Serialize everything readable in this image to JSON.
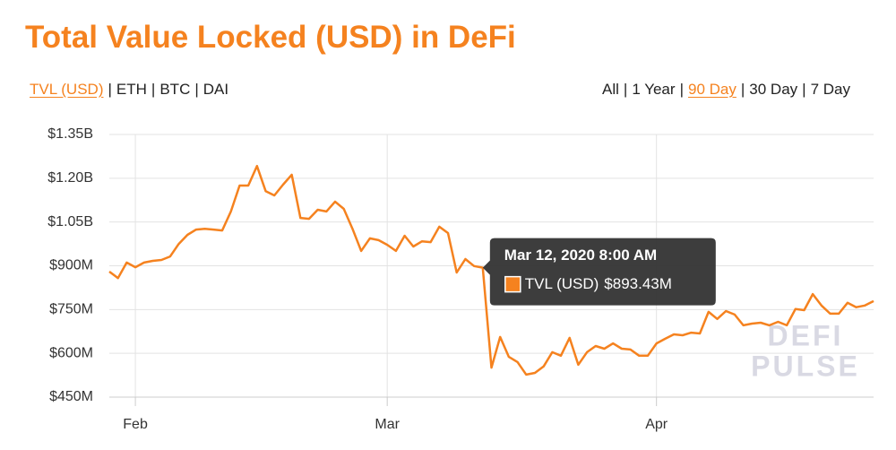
{
  "controls": {
    "left": [
      "TVL (USD)",
      "ETH",
      "BTC",
      "DAI"
    ],
    "left_active": 0,
    "right": [
      "All",
      "1 Year",
      "90 Day",
      "30 Day",
      "7 Day"
    ],
    "right_active": 2,
    "separator": "|"
  },
  "chart_data": {
    "type": "line",
    "title": "Total Value Locked (USD) in DeFi",
    "x": [
      "2020-01-29",
      "2020-01-30",
      "2020-01-31",
      "2020-02-01",
      "2020-02-02",
      "2020-02-03",
      "2020-02-04",
      "2020-02-05",
      "2020-02-06",
      "2020-02-07",
      "2020-02-08",
      "2020-02-09",
      "2020-02-10",
      "2020-02-11",
      "2020-02-12",
      "2020-02-13",
      "2020-02-14",
      "2020-02-15",
      "2020-02-16",
      "2020-02-17",
      "2020-02-18",
      "2020-02-19",
      "2020-02-20",
      "2020-02-21",
      "2020-02-22",
      "2020-02-23",
      "2020-02-24",
      "2020-02-25",
      "2020-02-26",
      "2020-02-27",
      "2020-02-28",
      "2020-02-29",
      "2020-03-01",
      "2020-03-02",
      "2020-03-03",
      "2020-03-04",
      "2020-03-05",
      "2020-03-06",
      "2020-03-07",
      "2020-03-08",
      "2020-03-09",
      "2020-03-10",
      "2020-03-11",
      "2020-03-12",
      "2020-03-13",
      "2020-03-14",
      "2020-03-15",
      "2020-03-16",
      "2020-03-17",
      "2020-03-18",
      "2020-03-19",
      "2020-03-20",
      "2020-03-21",
      "2020-03-22",
      "2020-03-23",
      "2020-03-24",
      "2020-03-25",
      "2020-03-26",
      "2020-03-27",
      "2020-03-28",
      "2020-03-29",
      "2020-03-30",
      "2020-03-31",
      "2020-04-01",
      "2020-04-02",
      "2020-04-03",
      "2020-04-04",
      "2020-04-05",
      "2020-04-06",
      "2020-04-07",
      "2020-04-08",
      "2020-04-09",
      "2020-04-10",
      "2020-04-11",
      "2020-04-12",
      "2020-04-13",
      "2020-04-14",
      "2020-04-15",
      "2020-04-16",
      "2020-04-17",
      "2020-04-18",
      "2020-04-19",
      "2020-04-20",
      "2020-04-21",
      "2020-04-22",
      "2020-04-23",
      "2020-04-24",
      "2020-04-25",
      "2020-04-26"
    ],
    "series": [
      {
        "name": "TVL (USD)",
        "color": "#f5821f",
        "values": [
          880000000,
          858000000,
          911000000,
          895000000,
          911000000,
          917000000,
          920000000,
          932000000,
          975000000,
          1006000000,
          1024000000,
          1027000000,
          1024000000,
          1021000000,
          1086000000,
          1175000000,
          1175000000,
          1242000000,
          1156000000,
          1141000000,
          1178000000,
          1212000000,
          1064000000,
          1061000000,
          1092000000,
          1086000000,
          1120000000,
          1095000000,
          1027000000,
          951000000,
          994000000,
          988000000,
          972000000,
          951000000,
          1003000000,
          966000000,
          984000000,
          981000000,
          1034000000,
          1012000000,
          877000000,
          923000000,
          899000000,
          893430000,
          551000000,
          656000000,
          588000000,
          570000000,
          527000000,
          533000000,
          555000000,
          604000000,
          592000000,
          653000000,
          561000000,
          604000000,
          625000000,
          616000000,
          634000000,
          616000000,
          613000000,
          592000000,
          592000000,
          634000000,
          650000000,
          665000000,
          662000000,
          671000000,
          668000000,
          742000000,
          718000000,
          745000000,
          733000000,
          696000000,
          702000000,
          705000000,
          696000000,
          708000000,
          696000000,
          752000000,
          748000000,
          803000000,
          764000000,
          736000000,
          736000000,
          773000000,
          758000000,
          764000000,
          779000000
        ]
      }
    ],
    "xlim": [
      "2020-01-29",
      "2020-04-26"
    ],
    "xticks": [
      {
        "value": "2020-02-01",
        "label": "Feb"
      },
      {
        "value": "2020-03-01",
        "label": "Mar"
      },
      {
        "value": "2020-04-01",
        "label": "Apr"
      }
    ],
    "ylim": [
      450000000,
      1350000000
    ],
    "yticks": [
      {
        "value": 450000000,
        "label": "$450M"
      },
      {
        "value": 600000000,
        "label": "$600M"
      },
      {
        "value": 750000000,
        "label": "$750M"
      },
      {
        "value": 900000000,
        "label": "$900M"
      },
      {
        "value": 1050000000,
        "label": "$1.05B"
      },
      {
        "value": 1200000000,
        "label": "$1.20B"
      },
      {
        "value": 1350000000,
        "label": "$1.35B"
      }
    ],
    "grid": true,
    "tooltip": {
      "x": "2020-03-12",
      "title": "Mar 12, 2020 8:00 AM",
      "value_label": "$893.43M"
    },
    "watermark": [
      "DEFI",
      "PULSE"
    ]
  }
}
